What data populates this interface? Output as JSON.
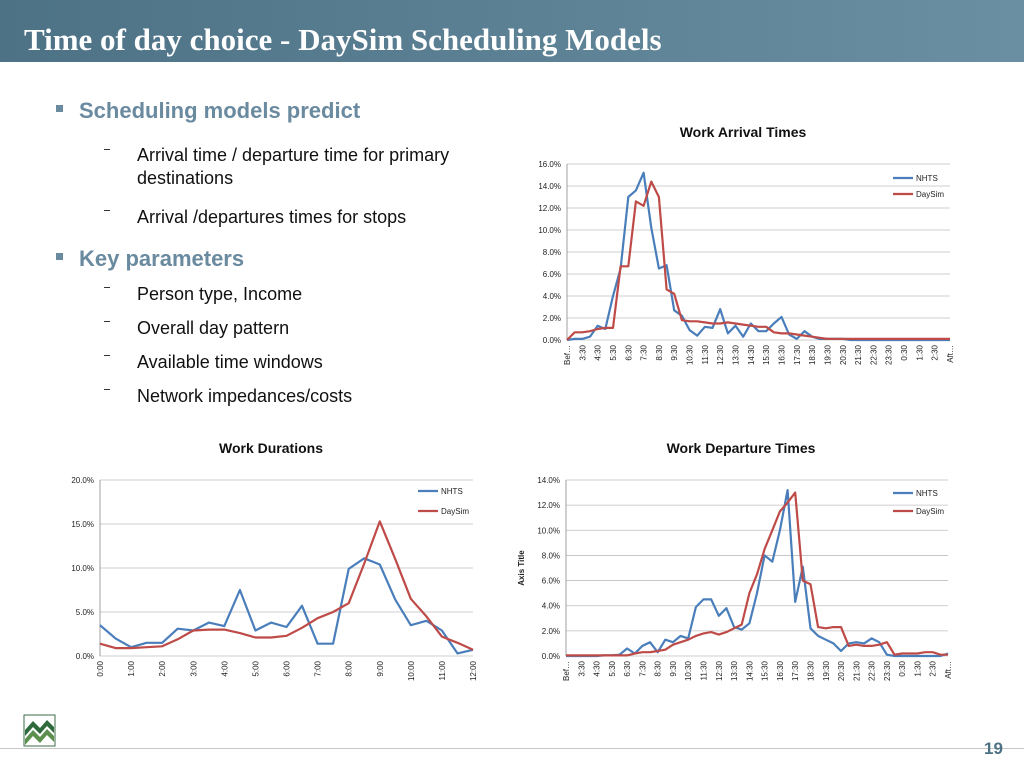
{
  "header": {
    "title": "Time of day choice  - DaySim Scheduling Models"
  },
  "bullets": [
    {
      "text": "Scheduling models predict",
      "items": [
        "Arrival time / departure time for primary destinations",
        "Arrival /departures times for stops"
      ]
    },
    {
      "text": "Key parameters",
      "items": [
        "Person type, Income",
        "Overall day pattern",
        "Available time windows",
        "Network impedances/costs"
      ]
    }
  ],
  "page_number": "19",
  "chart_data": [
    {
      "type": "line",
      "title": "Work Arrival Times",
      "categories": [
        "Bef…",
        null,
        "3:30",
        null,
        "4:30",
        null,
        "5:30",
        null,
        "6:30",
        null,
        "7:30",
        null,
        "8:30",
        null,
        "9:30",
        null,
        "10:30",
        null,
        "11:30",
        null,
        "12:30",
        null,
        "13:30",
        null,
        "14:30",
        null,
        "15:30",
        null,
        "16:30",
        null,
        "17:30",
        null,
        "18:30",
        null,
        "19:30",
        null,
        "20:30",
        null,
        "21:30",
        null,
        "22:30",
        null,
        "23:30",
        null,
        "0:30",
        null,
        "1:30",
        null,
        "2:30",
        null,
        "Aft…"
      ],
      "series": [
        {
          "name": "NHTS",
          "color": "#4a7ebb",
          "values": [
            0,
            0.1,
            0.1,
            0.3,
            1.3,
            1.0,
            4.0,
            6.5,
            13.0,
            13.6,
            15.2,
            10.2,
            6.5,
            6.8,
            2.7,
            2.2,
            0.9,
            0.4,
            1.2,
            1.1,
            2.8,
            0.6,
            1.3,
            0.3,
            1.5,
            0.8,
            0.8,
            1.5,
            2.1,
            0.5,
            0.1,
            0.8,
            0.3,
            0.1,
            0.1,
            0.1,
            0.1,
            0,
            0,
            0,
            0,
            0,
            0,
            0,
            0,
            0,
            0,
            0,
            0,
            0,
            0
          ]
        },
        {
          "name": "DaySim",
          "color": "#be4b48",
          "values": [
            0,
            0.7,
            0.7,
            0.8,
            1.0,
            1.1,
            1.1,
            6.7,
            6.7,
            12.6,
            12.2,
            14.4,
            13.0,
            4.6,
            4.2,
            1.8,
            1.7,
            1.7,
            1.6,
            1.5,
            1.5,
            1.6,
            1.5,
            1.4,
            1.3,
            1.2,
            1.2,
            0.7,
            0.6,
            0.6,
            0.5,
            0.4,
            0.3,
            0.2,
            0.1,
            0.1,
            0.1,
            0.1,
            0.1,
            0.1,
            0.1,
            0.1,
            0.1,
            0.1,
            0.1,
            0.1,
            0.1,
            0.1,
            0.1,
            0.1,
            0.1
          ]
        }
      ],
      "ylim": [
        0,
        16
      ],
      "yticks": [
        {
          "value": 0,
          "label": "0.0%"
        },
        {
          "value": 2,
          "label": "2.0%"
        },
        {
          "value": 4,
          "label": "4.0%"
        },
        {
          "value": 6,
          "label": "6.0%"
        },
        {
          "value": 8,
          "label": "8.0%"
        },
        {
          "value": 10,
          "label": "10.0%"
        },
        {
          "value": 12,
          "label": "12.0%"
        },
        {
          "value": 14,
          "label": "14.0%"
        },
        {
          "value": 16,
          "label": "16.0%"
        }
      ],
      "grid": true,
      "legend": "upper right"
    },
    {
      "type": "line",
      "title": "Work Durations",
      "categories": [
        "0:00",
        null,
        "1:00",
        null,
        "2:00",
        null,
        "3:00",
        null,
        "4:00",
        null,
        "5:00",
        null,
        "6:00",
        null,
        "7:00",
        null,
        "8:00",
        null,
        "9:00",
        null,
        "10:00",
        null,
        "11:00",
        null,
        "12:00"
      ],
      "series": [
        {
          "name": "NHTS",
          "color": "#4a7ebb",
          "values": [
            3.5,
            2.0,
            1.0,
            1.5,
            1.5,
            3.1,
            2.9,
            3.8,
            3.4,
            7.5,
            2.9,
            3.8,
            3.3,
            5.7,
            1.4,
            1.4,
            9.9,
            11.1,
            10.4,
            6.4,
            3.5,
            4.0,
            2.9,
            0.3,
            0.7
          ]
        },
        {
          "name": "DaySim",
          "color": "#be4b48",
          "values": [
            1.4,
            0.9,
            0.9,
            1.0,
            1.1,
            1.9,
            2.9,
            3.0,
            3.0,
            2.6,
            2.1,
            2.1,
            2.3,
            3.2,
            4.3,
            5.0,
            6.0,
            10.5,
            15.3,
            11.0,
            6.5,
            4.5,
            2.2,
            1.5,
            0.7
          ]
        }
      ],
      "ylim": [
        0,
        20
      ],
      "yticks": [
        {
          "value": 0,
          "label": "0.0%"
        },
        {
          "value": 5,
          "label": "5.0%"
        },
        {
          "value": 10,
          "label": "10.0%"
        },
        {
          "value": 15,
          "label": "15.0%"
        },
        {
          "value": 20,
          "label": "20.0%"
        }
      ],
      "grid": true,
      "legend": "upper right"
    },
    {
      "type": "line",
      "title": "Work Departure Times",
      "ylabel": "Axis Title",
      "categories": [
        "Bef…",
        null,
        "3:30",
        null,
        "4:30",
        null,
        "5:30",
        null,
        "6:30",
        null,
        "7:30",
        null,
        "8:30",
        null,
        "9:30",
        null,
        "10:30",
        null,
        "11:30",
        null,
        "12:30",
        null,
        "13:30",
        null,
        "14:30",
        null,
        "15:30",
        null,
        "16:30",
        null,
        "17:30",
        null,
        "18:30",
        null,
        "19:30",
        null,
        "20:30",
        null,
        "21:30",
        null,
        "22:30",
        null,
        "23:30",
        null,
        "0:30",
        null,
        "1:30",
        null,
        "2:30",
        null,
        "Aft…"
      ],
      "series": [
        {
          "name": "NHTS",
          "color": "#4a7ebb",
          "values": [
            0,
            0,
            0,
            0,
            0,
            0.05,
            0.05,
            0.1,
            0.6,
            0.2,
            0.8,
            1.1,
            0.3,
            1.3,
            1.1,
            1.6,
            1.4,
            3.9,
            4.5,
            4.5,
            3.2,
            3.8,
            2.3,
            2.1,
            2.6,
            5.0,
            8.0,
            7.5,
            10.0,
            13.2,
            4.3,
            7.1,
            2.2,
            1.6,
            1.3,
            1.0,
            0.4,
            1.0,
            1.1,
            1.0,
            1.4,
            1.1,
            0.1,
            0,
            0,
            0,
            0,
            0,
            0,
            0,
            0.2
          ]
        },
        {
          "name": "DaySim",
          "color": "#be4b48",
          "values": [
            0.05,
            0.05,
            0.05,
            0.05,
            0.05,
            0.05,
            0.05,
            0.05,
            0.05,
            0.2,
            0.3,
            0.3,
            0.4,
            0.5,
            0.9,
            1.1,
            1.3,
            1.6,
            1.8,
            1.9,
            1.7,
            1.9,
            2.2,
            2.5,
            5.0,
            6.5,
            8.5,
            10.0,
            11.5,
            12.2,
            13.0,
            6.0,
            5.7,
            2.3,
            2.2,
            2.3,
            2.3,
            0.8,
            0.9,
            0.8,
            0.8,
            0.9,
            1.1,
            0.1,
            0.2,
            0.2,
            0.2,
            0.3,
            0.3,
            0.1,
            0.1
          ]
        }
      ],
      "ylim": [
        0,
        14
      ],
      "yticks": [
        {
          "value": 0,
          "label": "0.0%"
        },
        {
          "value": 2,
          "label": "2.0%"
        },
        {
          "value": 4,
          "label": "4.0%"
        },
        {
          "value": 6,
          "label": "6.0%"
        },
        {
          "value": 8,
          "label": "8.0%"
        },
        {
          "value": 10,
          "label": "10.0%"
        },
        {
          "value": 12,
          "label": "12.0%"
        },
        {
          "value": 14,
          "label": "14.0%"
        }
      ],
      "grid": true,
      "legend": "upper right"
    }
  ]
}
